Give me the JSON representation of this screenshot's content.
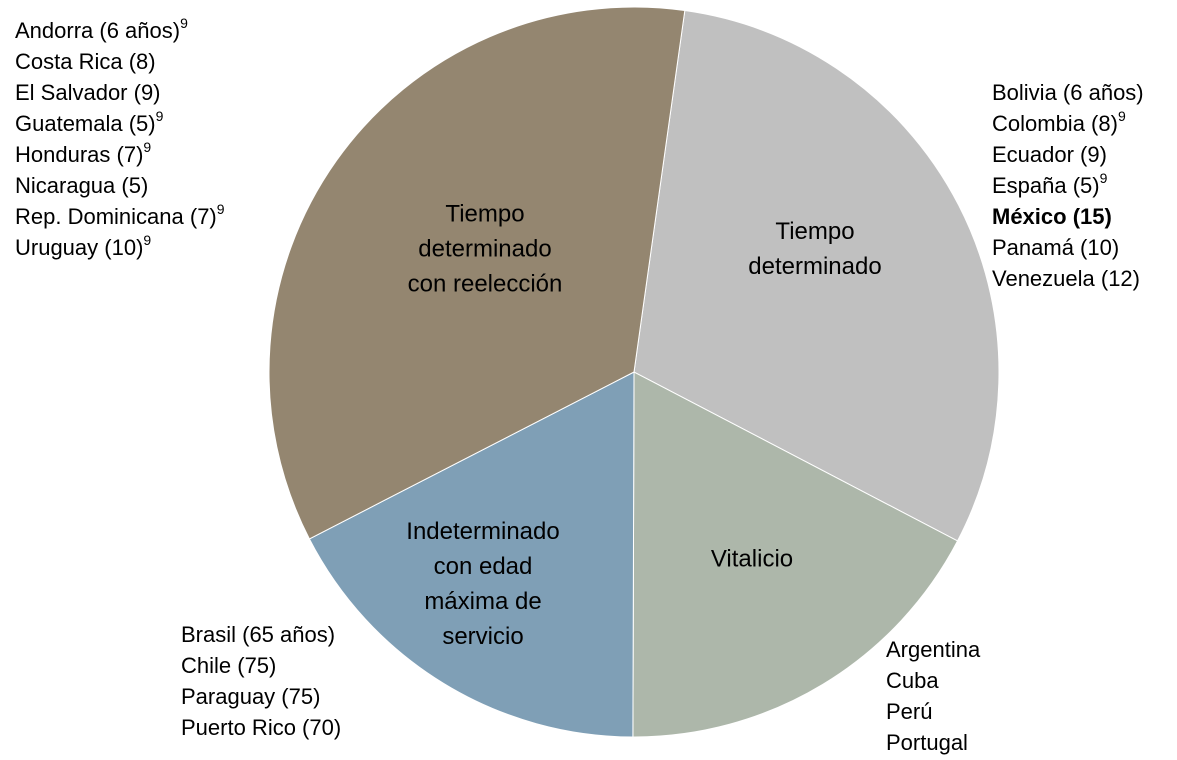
{
  "chart_data": {
    "type": "pie",
    "start_angle": 8,
    "categories": [
      [
        "Tiempo",
        "determinado"
      ],
      [
        "Vitalicio"
      ],
      [
        "Indeterminado",
        "con edad",
        "máxima de",
        "servicio"
      ],
      [
        "Tiempo",
        "determinado",
        "con reelección"
      ]
    ],
    "values": [
      7,
      4,
      4,
      8
    ],
    "colors": [
      "#c0c0c0",
      "#adb7aa",
      "#7f9fb6",
      "#948670"
    ],
    "country_lists": [
      [
        {
          "text": "Bolivia (6 años)"
        },
        {
          "text": "Colombia (8)",
          "sup": "9"
        },
        {
          "text": "Ecuador (9)"
        },
        {
          "text": "España (5)",
          "sup": "9"
        },
        {
          "text": "México (15)",
          "bold": true
        },
        {
          "text": "Panamá (10)"
        },
        {
          "text": "Venezuela (12)"
        }
      ],
      [
        {
          "text": "Argentina"
        },
        {
          "text": "Cuba"
        },
        {
          "text": "Perú"
        },
        {
          "text": "Portugal"
        }
      ],
      [
        {
          "text": "Brasil (65 años)"
        },
        {
          "text": "Chile (75)"
        },
        {
          "text": "Paraguay (75)"
        },
        {
          "text": "Puerto Rico (70)"
        }
      ],
      [
        {
          "text": "Andorra (6 años)",
          "sup": "9"
        },
        {
          "text": "Costa Rica (8)"
        },
        {
          "text": "El Salvador (9)"
        },
        {
          "text": "Guatemala (5)",
          "sup": "9"
        },
        {
          "text": "Honduras (7)",
          "sup": "9"
        },
        {
          "text": "Nicaragua (5)"
        },
        {
          "text": "Rep. Dominicana (7)",
          "sup": "9"
        },
        {
          "text": "Uruguay (10)",
          "sup": "9"
        }
      ]
    ]
  }
}
